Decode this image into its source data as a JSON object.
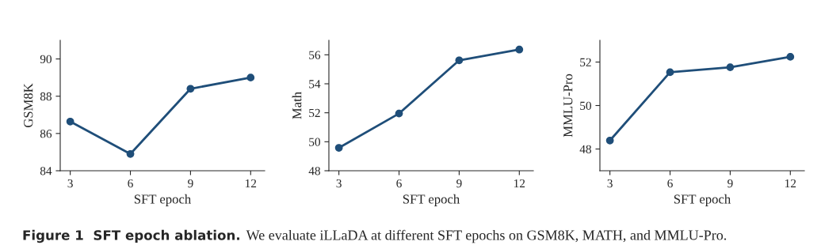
{
  "chart_data": [
    {
      "type": "line",
      "xlabel": "SFT epoch",
      "ylabel": "GSM8K",
      "x": [
        3,
        6,
        9,
        12
      ],
      "series": [
        {
          "color": "#1f4e79",
          "values": [
            86.64,
            84.9,
            88.4,
            89.0
          ]
        }
      ],
      "xlim": [
        2.5,
        12.7
      ],
      "xticks": [
        3,
        6,
        9,
        12
      ],
      "ylim": [
        84,
        91
      ],
      "yticks": [
        84,
        86,
        88,
        90
      ],
      "marker": "circle",
      "line_style": "solid",
      "grid": false,
      "legend": false,
      "annotations": [
        "Figure 1  SFT epoch ablation.",
        "We evaluate iLLaDA at different SFT epochs on GSM8K, MATH, and MMLU-Pro."
      ]
    },
    {
      "type": "line",
      "xlabel": "SFT epoch",
      "ylabel": "Math",
      "x": [
        3,
        6,
        9,
        12
      ],
      "series": [
        {
          "color": "#1f4e79",
          "values": [
            49.58,
            51.95,
            55.62,
            56.36
          ]
        }
      ],
      "xlim": [
        2.5,
        12.7
      ],
      "xticks": [
        3,
        6,
        9,
        12
      ],
      "ylim": [
        48,
        57
      ],
      "yticks": [
        48,
        50,
        52,
        54,
        56
      ],
      "marker": "circle",
      "line_style": "solid",
      "grid": false,
      "legend": false
    },
    {
      "type": "line",
      "xlabel": "SFT epoch",
      "ylabel": "MMLU-Pro",
      "x": [
        3,
        6,
        9,
        12
      ],
      "series": [
        {
          "color": "#1f4e79",
          "values": [
            48.39,
            51.53,
            51.76,
            52.24
          ]
        }
      ],
      "xlim": [
        2.5,
        12.7
      ],
      "xticks": [
        3,
        6,
        9,
        12
      ],
      "ylim": [
        47,
        53
      ],
      "yticks": [
        48,
        50,
        52
      ],
      "marker": "circle",
      "line_style": "solid",
      "grid": false,
      "legend": false
    }
  ]
}
